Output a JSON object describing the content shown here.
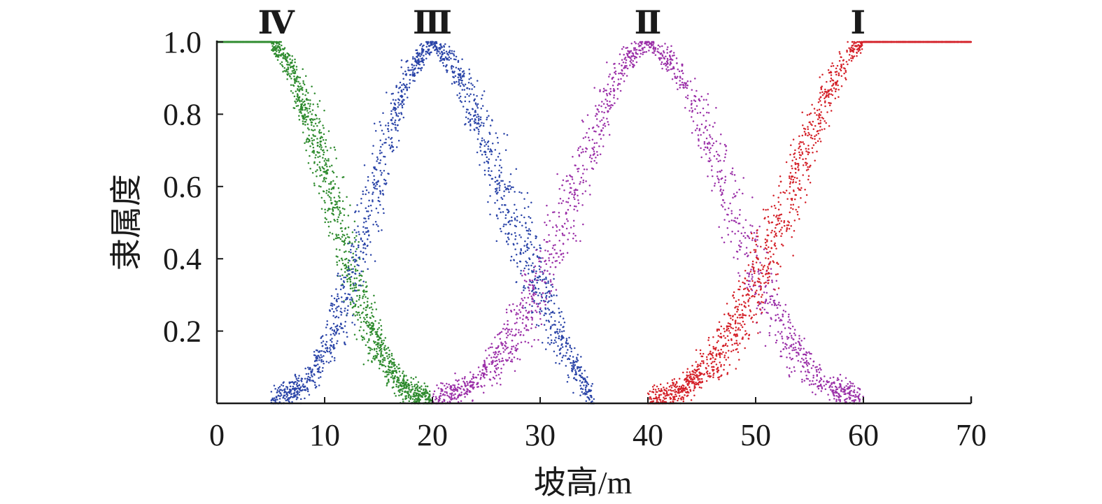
{
  "chart_data": {
    "type": "scatter",
    "xlabel": "坡高/m",
    "ylabel": "隶属度",
    "xlim": [
      0,
      70
    ],
    "ylim": [
      0,
      1.0
    ],
    "x_ticks": [
      0,
      10,
      20,
      30,
      40,
      50,
      60,
      70
    ],
    "x_tick_labels": [
      "0",
      "10",
      "20",
      "30",
      "40",
      "50",
      "60",
      "70"
    ],
    "y_ticks": [
      0.2,
      0.4,
      0.6,
      0.8,
      1.0
    ],
    "y_tick_labels": [
      "0.2",
      "0.4",
      "0.6",
      "0.8",
      "1.0"
    ],
    "grid": false,
    "legend": "none",
    "class_labels": [
      {
        "label": "Ⅳ",
        "x": 5.5
      },
      {
        "label": "Ⅲ",
        "x": 20
      },
      {
        "label": "Ⅱ",
        "x": 40
      },
      {
        "label": "Ⅰ",
        "x": 59.5
      }
    ],
    "series": [
      {
        "color": "#2e8b2e",
        "shape": "z-shaped",
        "plateau": [
          0,
          5
        ],
        "falls_to_zero_at": 20,
        "x": [
          0,
          5,
          6,
          7,
          8,
          9,
          10,
          11,
          12,
          13,
          14,
          15,
          16,
          17,
          18,
          19,
          20
        ],
        "y": [
          1.0,
          1.0,
          0.97,
          0.91,
          0.83,
          0.74,
          0.64,
          0.53,
          0.42,
          0.32,
          0.23,
          0.16,
          0.1,
          0.06,
          0.03,
          0.01,
          0.0
        ]
      },
      {
        "color": "#2b45a8",
        "shape": "bell",
        "peak": 20,
        "rises_from": 5,
        "falls_to_zero_at": 35,
        "x": [
          5,
          8,
          10,
          12,
          14,
          16,
          18,
          20,
          22,
          24,
          26,
          28,
          30,
          32,
          35
        ],
        "y": [
          0.0,
          0.05,
          0.14,
          0.3,
          0.52,
          0.74,
          0.92,
          1.0,
          0.93,
          0.8,
          0.63,
          0.46,
          0.32,
          0.18,
          0.0
        ]
      },
      {
        "color": "#9b30a8",
        "shape": "bell",
        "peak": 40,
        "rises_from": 20,
        "falls_to_zero_at": 60,
        "x": [
          20,
          24,
          27,
          30,
          33,
          36,
          38,
          40,
          42,
          44,
          46,
          48,
          50,
          53,
          56,
          60
        ],
        "y": [
          0.0,
          0.06,
          0.16,
          0.33,
          0.58,
          0.82,
          0.95,
          1.0,
          0.95,
          0.85,
          0.7,
          0.52,
          0.36,
          0.18,
          0.06,
          0.0
        ]
      },
      {
        "color": "#d42028",
        "shape": "s-shaped",
        "rises_from": 40,
        "plateau": [
          60,
          70
        ],
        "x": [
          40,
          43,
          46,
          48,
          50,
          52,
          54,
          56,
          58,
          59,
          60,
          70
        ],
        "y": [
          0.0,
          0.03,
          0.12,
          0.21,
          0.33,
          0.48,
          0.64,
          0.8,
          0.93,
          0.98,
          1.0,
          1.0
        ]
      }
    ]
  }
}
